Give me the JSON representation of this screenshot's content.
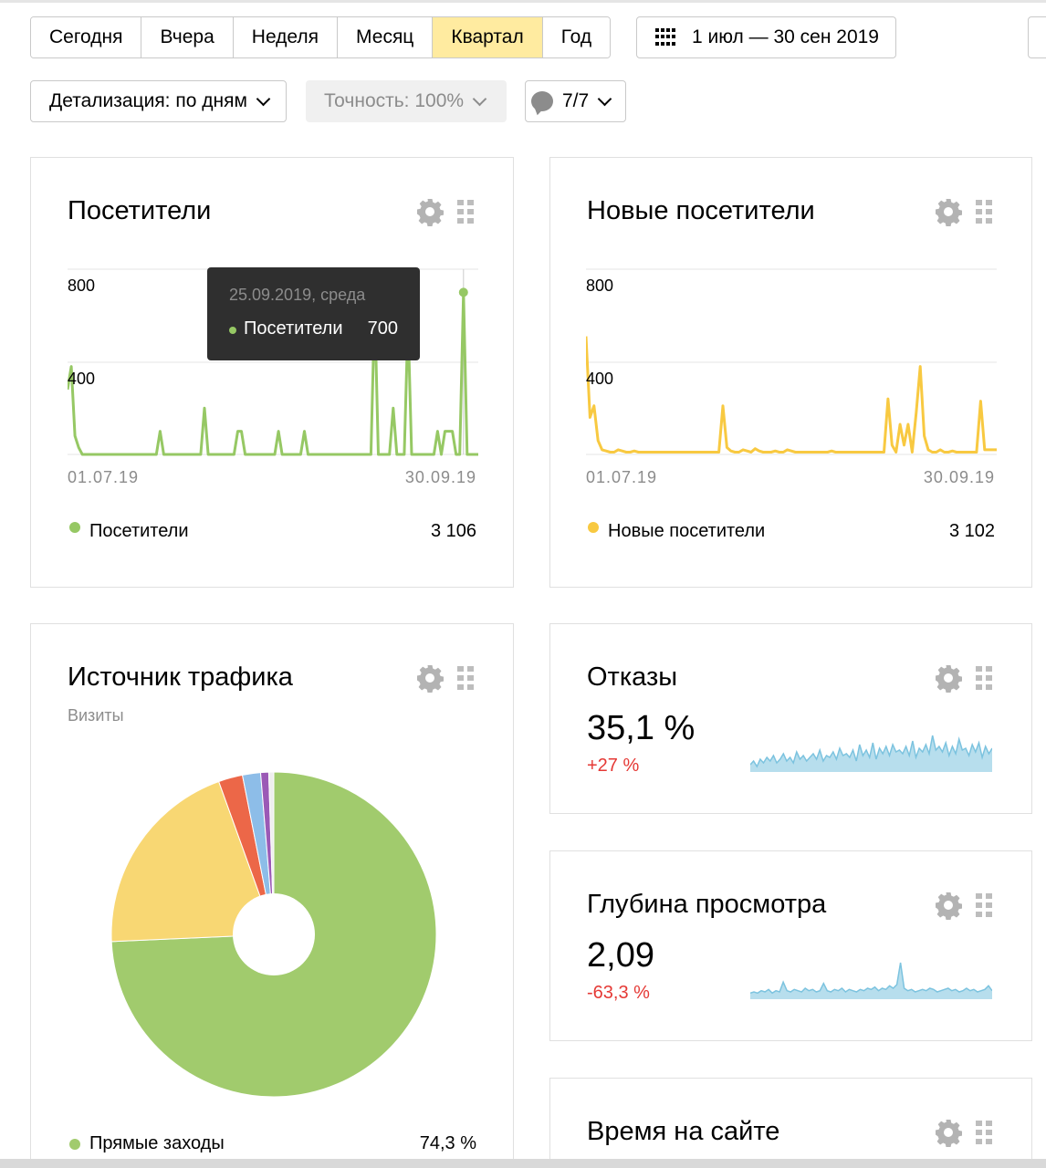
{
  "periods": {
    "items": [
      {
        "label": "Сегодня"
      },
      {
        "label": "Вчера"
      },
      {
        "label": "Неделя"
      },
      {
        "label": "Месяц"
      },
      {
        "label": "Квартал"
      },
      {
        "label": "Год"
      }
    ],
    "active": "Квартал"
  },
  "date_range": {
    "label": "1 июл — 30 сен 2019",
    "icon": "calendar-icon"
  },
  "filters": {
    "detail": "Детализация: по дням",
    "accuracy": "Точность: 100%",
    "segments": "7/7",
    "segments_icon": "comment-bubble-icon"
  },
  "colors": {
    "active_period": "#ffeba0",
    "visitors": "#96c864",
    "new_visitors": "#f8c941",
    "sparkline": "#7cc3df",
    "negative": "#e53935"
  },
  "visitors_widget": {
    "title": "Посетители",
    "y_ticks": [
      "800",
      "400"
    ],
    "date_start": "01.07.19",
    "date_end": "30.09.19",
    "legend_label": "Посетители",
    "legend_value": "3 106",
    "tooltip": {
      "date": "25.09.2019, среда",
      "series": "Посетители",
      "value": "700"
    }
  },
  "new_visitors_widget": {
    "title": "Новые посетители",
    "y_ticks": [
      "800",
      "400"
    ],
    "date_start": "01.07.19",
    "date_end": "30.09.19",
    "legend_label": "Новые посетители",
    "legend_value": "3 102"
  },
  "traffic_widget": {
    "title": "Источник трафика",
    "subtitle": "Визиты",
    "legend_label": "Прямые заходы",
    "legend_value": "74,3 %"
  },
  "bounce_widget": {
    "title": "Отказы",
    "value": "35,1 %",
    "delta": "+27 %"
  },
  "depth_widget": {
    "title": "Глубина просмотра",
    "value": "2,09",
    "delta": "-63,3 %"
  },
  "time_widget": {
    "title": "Время на сайте"
  },
  "chart_data": [
    {
      "type": "line",
      "series": [
        {
          "name": "Посетители",
          "values": [
            280,
            380,
            80,
            30,
            0,
            0,
            0,
            0,
            0,
            0,
            0,
            0,
            0,
            0,
            0,
            0,
            0,
            0,
            0,
            0,
            0,
            0,
            0,
            0,
            0,
            100,
            0,
            0,
            0,
            0,
            0,
            0,
            0,
            0,
            0,
            0,
            0,
            200,
            0,
            0,
            0,
            0,
            0,
            0,
            0,
            0,
            100,
            100,
            0,
            0,
            0,
            0,
            0,
            0,
            0,
            0,
            0,
            100,
            0,
            0,
            0,
            0,
            0,
            0,
            100,
            0,
            0,
            0,
            0,
            0,
            0,
            0,
            0,
            0,
            0,
            0,
            0,
            0,
            0,
            0,
            0,
            0,
            0,
            650,
            0,
            0,
            0,
            0,
            200,
            0,
            0,
            0,
            580,
            0,
            0,
            0,
            0,
            0,
            0,
            0,
            100,
            0,
            100,
            100,
            100,
            0,
            0,
            700,
            0,
            0,
            0,
            0
          ]
        }
      ],
      "x_start": "01.07.19",
      "x_end": "30.09.19",
      "ylim": [
        0,
        800
      ],
      "y_ticks": [
        400,
        800
      ]
    },
    {
      "type": "line",
      "series": [
        {
          "name": "Новые посетители",
          "values": [
            510,
            160,
            210,
            60,
            20,
            15,
            10,
            10,
            20,
            15,
            10,
            10,
            15,
            10,
            10,
            10,
            10,
            10,
            10,
            10,
            10,
            10,
            10,
            10,
            10,
            10,
            10,
            10,
            10,
            10,
            10,
            10,
            10,
            10,
            210,
            30,
            15,
            10,
            10,
            20,
            15,
            10,
            25,
            15,
            10,
            10,
            10,
            15,
            10,
            10,
            20,
            15,
            10,
            10,
            10,
            10,
            10,
            10,
            10,
            10,
            10,
            15,
            10,
            10,
            10,
            10,
            10,
            10,
            10,
            10,
            10,
            10,
            10,
            10,
            10,
            240,
            40,
            10,
            130,
            40,
            130,
            10,
            180,
            380,
            80,
            20,
            10,
            10,
            20,
            10,
            10,
            15,
            10,
            10,
            10,
            10,
            10,
            10,
            230,
            20,
            20,
            20,
            20
          ]
        }
      ],
      "x_start": "01.07.19",
      "x_end": "30.09.19",
      "ylim": [
        0,
        800
      ],
      "y_ticks": [
        400,
        800
      ]
    },
    {
      "type": "pie",
      "categories": [
        "Прямые заходы",
        "",
        "",
        "",
        "",
        ""
      ],
      "values": [
        74.3,
        20.2,
        2.4,
        1.8,
        0.8,
        0.5
      ],
      "colors": [
        "#a1cb6d",
        "#f8d773",
        "#ec6748",
        "#8dbde8",
        "#9b59b6",
        "#eeeeee"
      ]
    },
    {
      "type": "area",
      "series": [
        {
          "name": "Отказы",
          "values": [
            4,
            6,
            3,
            7,
            5,
            8,
            6,
            9,
            5,
            7,
            10,
            6,
            8,
            5,
            11,
            7,
            9,
            6,
            8,
            10,
            7,
            12,
            6,
            9,
            8,
            11,
            7,
            13,
            9,
            10,
            8,
            12,
            6,
            15,
            9,
            12,
            8,
            16,
            7,
            13,
            10,
            14,
            9,
            15,
            11,
            12,
            10,
            14,
            9,
            17,
            8,
            13,
            11,
            15,
            10,
            20,
            12,
            14,
            11,
            16,
            9,
            14,
            10,
            18,
            12,
            13,
            9,
            15,
            11,
            16,
            8,
            14,
            10,
            13
          ]
        }
      ]
    },
    {
      "type": "area",
      "series": [
        {
          "name": "Глубина просмотра",
          "values": [
            5,
            6,
            5,
            7,
            6,
            8,
            5,
            7,
            6,
            14,
            7,
            6,
            8,
            7,
            6,
            9,
            7,
            8,
            6,
            7,
            13,
            7,
            6,
            8,
            7,
            9,
            6,
            8,
            7,
            6,
            8,
            7,
            9,
            8,
            10,
            7,
            9,
            8,
            11,
            9,
            12,
            30,
            9,
            7,
            8,
            6,
            7,
            8,
            7,
            9,
            8,
            6,
            7,
            8,
            9,
            7,
            8,
            6,
            7,
            9,
            7,
            8,
            6,
            7,
            8,
            11,
            7
          ]
        }
      ]
    }
  ]
}
